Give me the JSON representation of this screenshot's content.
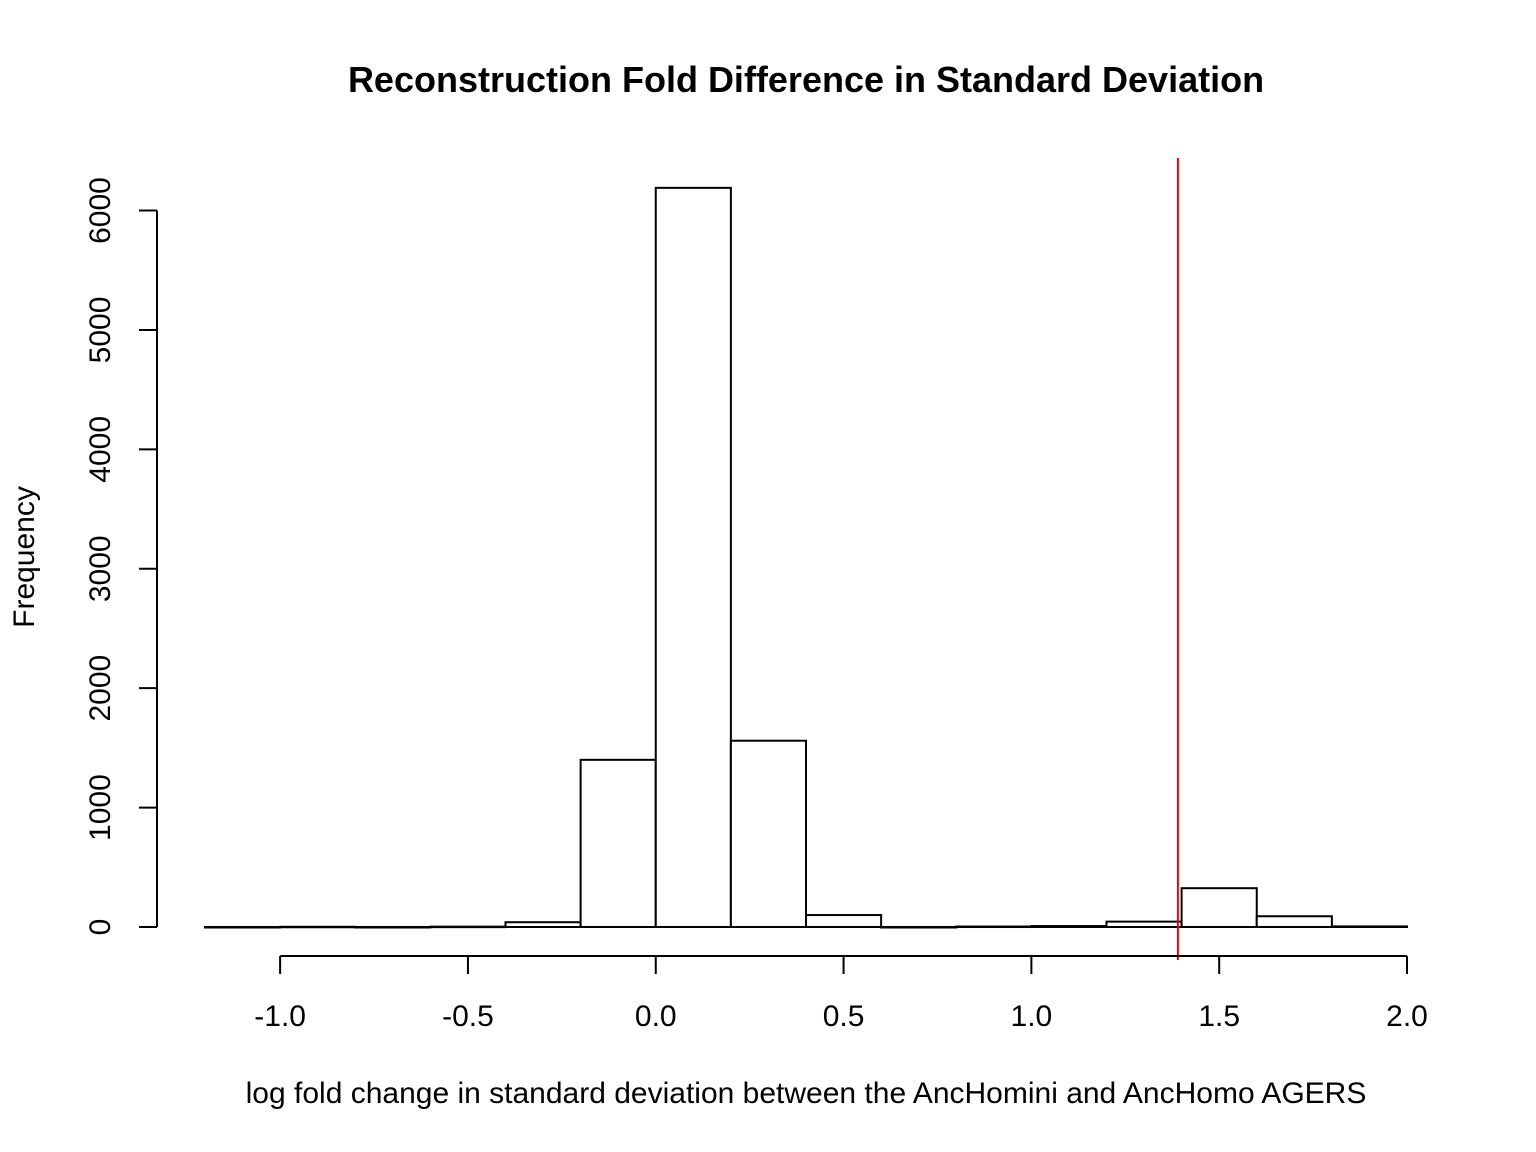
{
  "chart_data": {
    "type": "bar",
    "subtype": "histogram",
    "title": "Reconstruction Fold Difference in Standard Deviation",
    "xlabel": "log fold change in standard deviation between the AncHomini and AncHomo AGERS",
    "ylabel": "Frequency",
    "bin_edges": [
      -1.2,
      -1.0,
      -0.8,
      -0.6,
      -0.4,
      -0.2,
      0.0,
      0.2,
      0.4,
      0.6,
      0.8,
      1.0,
      1.2,
      1.4,
      1.6,
      1.8,
      2.0
    ],
    "values": [
      0,
      2,
      0,
      3,
      40,
      1400,
      6190,
      1560,
      100,
      0,
      4,
      8,
      45,
      325,
      90,
      5
    ],
    "xlim": [
      -1.2,
      2.0
    ],
    "ylim": [
      0,
      6440
    ],
    "x_ticks": [
      -1.0,
      -0.5,
      0.0,
      0.5,
      1.0,
      1.5,
      2.0
    ],
    "x_tick_labels": [
      "-1.0",
      "-0.5",
      "0.0",
      "0.5",
      "1.0",
      "1.5",
      "2.0"
    ],
    "y_ticks": [
      0,
      1000,
      2000,
      3000,
      4000,
      5000,
      6000
    ],
    "y_tick_labels": [
      "0",
      "1000",
      "2000",
      "3000",
      "4000",
      "5000",
      "6000"
    ],
    "reference_line": {
      "x": 1.39,
      "color": "#e8000b"
    },
    "bar_fill": "#ffffff",
    "bar_stroke": "#000000",
    "grid": false,
    "legend": "none"
  }
}
